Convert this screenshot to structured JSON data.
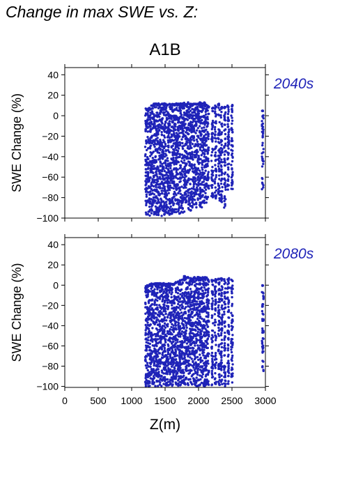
{
  "page": {
    "title": "Change in max SWE vs. Z:"
  },
  "colors": {
    "points": "#1f23b8",
    "panel_label": "#1f23b8",
    "axis": "#000000"
  },
  "chart_data": [
    {
      "type": "scatter",
      "title": "A1B",
      "panel_label": "2040s",
      "xlabel": "Z(m)",
      "ylabel": "SWE Change (%)",
      "xlim": [
        0,
        3000
      ],
      "ylim": [
        -100,
        47
      ],
      "xticks": [
        0,
        500,
        1000,
        1500,
        2000,
        2500,
        3000
      ],
      "yticks": [
        -100,
        -80,
        -60,
        -40,
        -20,
        0,
        20,
        40
      ],
      "show_xtick_labels": false,
      "grid": false,
      "columns": [
        {
          "x": 1215,
          "ymin": -97,
          "ymax": 7
        },
        {
          "x": 1245,
          "ymin": -97,
          "ymax": 7
        },
        {
          "x": 1275,
          "ymin": -98,
          "ymax": 8
        },
        {
          "x": 1305,
          "ymin": -96,
          "ymax": 11
        },
        {
          "x": 1335,
          "ymin": -97,
          "ymax": 12
        },
        {
          "x": 1365,
          "ymin": -98,
          "ymax": 12
        },
        {
          "x": 1395,
          "ymin": -97,
          "ymax": 12
        },
        {
          "x": 1425,
          "ymin": -97,
          "ymax": 12
        },
        {
          "x": 1455,
          "ymin": -98,
          "ymax": 12
        },
        {
          "x": 1485,
          "ymin": -97,
          "ymax": 12
        },
        {
          "x": 1515,
          "ymin": -96,
          "ymax": 12
        },
        {
          "x": 1545,
          "ymin": -97,
          "ymax": 12
        },
        {
          "x": 1575,
          "ymin": -97,
          "ymax": 12
        },
        {
          "x": 1605,
          "ymin": -96,
          "ymax": 12
        },
        {
          "x": 1635,
          "ymin": -97,
          "ymax": 12
        },
        {
          "x": 1665,
          "ymin": -96,
          "ymax": 12
        },
        {
          "x": 1695,
          "ymin": -95,
          "ymax": 12
        },
        {
          "x": 1725,
          "ymin": -96,
          "ymax": 12
        },
        {
          "x": 1755,
          "ymin": -95,
          "ymax": 12
        },
        {
          "x": 1785,
          "ymin": -94,
          "ymax": 13
        },
        {
          "x": 1815,
          "ymin": -94,
          "ymax": 12
        },
        {
          "x": 1845,
          "ymin": -92,
          "ymax": 13
        },
        {
          "x": 1875,
          "ymin": -93,
          "ymax": 12
        },
        {
          "x": 1905,
          "ymin": -90,
          "ymax": 12
        },
        {
          "x": 1935,
          "ymin": -88,
          "ymax": 12
        },
        {
          "x": 1965,
          "ymin": -90,
          "ymax": 12
        },
        {
          "x": 1995,
          "ymin": -85,
          "ymax": 12
        },
        {
          "x": 2025,
          "ymin": -92,
          "ymax": 13
        },
        {
          "x": 2055,
          "ymin": -90,
          "ymax": 12
        },
        {
          "x": 2085,
          "ymin": -88,
          "ymax": 13
        },
        {
          "x": 2115,
          "ymin": -85,
          "ymax": 12
        },
        {
          "x": 2145,
          "ymin": -80,
          "ymax": 10
        },
        {
          "x": 2205,
          "ymin": -82,
          "ymax": 9
        },
        {
          "x": 2255,
          "ymin": -82,
          "ymax": 10
        },
        {
          "x": 2305,
          "ymin": -88,
          "ymax": 12
        },
        {
          "x": 2345,
          "ymin": -85,
          "ymax": 9
        },
        {
          "x": 2395,
          "ymin": -90,
          "ymax": 9
        },
        {
          "x": 2445,
          "ymin": -75,
          "ymax": 10
        },
        {
          "x": 2500,
          "ymin": -72,
          "ymax": 11
        },
        {
          "x": 2960,
          "ymin": -72,
          "ymax": 5
        }
      ]
    },
    {
      "type": "scatter",
      "title": "",
      "panel_label": "2080s",
      "xlabel": "Z(m)",
      "ylabel": "SWE Change (%)",
      "xlim": [
        0,
        3000
      ],
      "ylim": [
        -101,
        47
      ],
      "xticks": [
        0,
        500,
        1000,
        1500,
        2000,
        2500,
        3000
      ],
      "yticks": [
        -100,
        -80,
        -60,
        -40,
        -20,
        0,
        20,
        40
      ],
      "show_xtick_labels": true,
      "grid": false,
      "columns": [
        {
          "x": 1215,
          "ymin": -100,
          "ymax": 0
        },
        {
          "x": 1245,
          "ymin": -100,
          "ymax": 0
        },
        {
          "x": 1275,
          "ymin": -100,
          "ymax": 1
        },
        {
          "x": 1305,
          "ymin": -100,
          "ymax": 2
        },
        {
          "x": 1335,
          "ymin": -100,
          "ymax": 2
        },
        {
          "x": 1365,
          "ymin": -100,
          "ymax": 2
        },
        {
          "x": 1395,
          "ymin": -100,
          "ymax": 2
        },
        {
          "x": 1425,
          "ymin": -100,
          "ymax": 2
        },
        {
          "x": 1455,
          "ymin": -100,
          "ymax": 2
        },
        {
          "x": 1485,
          "ymin": -100,
          "ymax": 2
        },
        {
          "x": 1515,
          "ymin": -100,
          "ymax": 2
        },
        {
          "x": 1545,
          "ymin": -100,
          "ymax": 2
        },
        {
          "x": 1575,
          "ymin": -100,
          "ymax": 2
        },
        {
          "x": 1605,
          "ymin": -100,
          "ymax": 2
        },
        {
          "x": 1635,
          "ymin": -100,
          "ymax": 2
        },
        {
          "x": 1665,
          "ymin": -100,
          "ymax": 3
        },
        {
          "x": 1695,
          "ymin": -100,
          "ymax": 4
        },
        {
          "x": 1725,
          "ymin": -100,
          "ymax": 5
        },
        {
          "x": 1755,
          "ymin": -100,
          "ymax": 6
        },
        {
          "x": 1785,
          "ymin": -100,
          "ymax": 9
        },
        {
          "x": 1815,
          "ymin": -100,
          "ymax": 8
        },
        {
          "x": 1845,
          "ymin": -100,
          "ymax": 8
        },
        {
          "x": 1875,
          "ymin": -100,
          "ymax": 7
        },
        {
          "x": 1905,
          "ymin": -100,
          "ymax": 7
        },
        {
          "x": 1935,
          "ymin": -100,
          "ymax": 8
        },
        {
          "x": 1965,
          "ymin": -100,
          "ymax": 7
        },
        {
          "x": 1995,
          "ymin": -100,
          "ymax": 8
        },
        {
          "x": 2025,
          "ymin": -100,
          "ymax": 8
        },
        {
          "x": 2055,
          "ymin": -100,
          "ymax": 8
        },
        {
          "x": 2085,
          "ymin": -100,
          "ymax": 8
        },
        {
          "x": 2115,
          "ymin": -100,
          "ymax": 8
        },
        {
          "x": 2145,
          "ymin": -100,
          "ymax": 6
        },
        {
          "x": 2205,
          "ymin": -100,
          "ymax": 6
        },
        {
          "x": 2255,
          "ymin": -100,
          "ymax": 6
        },
        {
          "x": 2305,
          "ymin": -100,
          "ymax": 7
        },
        {
          "x": 2345,
          "ymin": -100,
          "ymax": 7
        },
        {
          "x": 2395,
          "ymin": -100,
          "ymax": 6
        },
        {
          "x": 2445,
          "ymin": -100,
          "ymax": 7
        },
        {
          "x": 2500,
          "ymin": -98,
          "ymax": 6
        },
        {
          "x": 2960,
          "ymin": -85,
          "ymax": 1
        }
      ]
    }
  ]
}
